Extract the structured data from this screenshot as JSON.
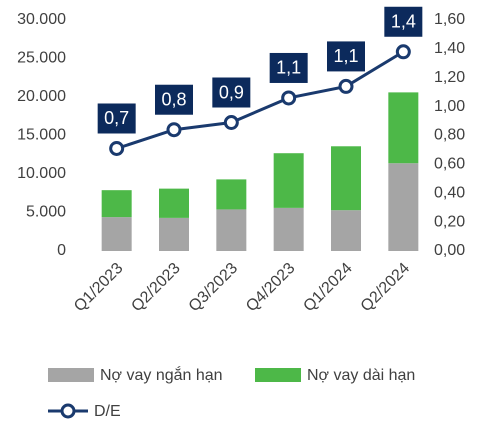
{
  "chart_data": {
    "type": "bar",
    "stacked": true,
    "categories": [
      "Q1/2023",
      "Q2/2023",
      "Q3/2023",
      "Q4/2023",
      "Q1/2024",
      "Q2/2024"
    ],
    "series": [
      {
        "name": "Nợ vay ngắn hạn",
        "color": "#a5a5a5",
        "values": [
          4400,
          4300,
          5400,
          5600,
          5300,
          11400
        ]
      },
      {
        "name": "Nợ vay dài hạn",
        "color": "#4db848",
        "values": [
          3500,
          3800,
          3900,
          7100,
          8300,
          9200
        ]
      },
      {
        "name": "D/E",
        "type": "line",
        "axis": "y2",
        "color": "#1a3a6e",
        "values": [
          0.71,
          0.84,
          0.89,
          1.06,
          1.14,
          1.38
        ],
        "value_labels": [
          "0,7",
          "0,8",
          "0,9",
          "1,1",
          "1,1",
          "1,4"
        ]
      }
    ],
    "ylim": [
      0,
      30000
    ],
    "yticks": [
      0,
      {
        "value": 5000,
        "label": "5.000"
      },
      {
        "value": 10000,
        "label": "10.000"
      },
      {
        "value": 15000,
        "label": "15.000"
      },
      {
        "value": 20000,
        "label": "20.000"
      },
      {
        "value": 25000,
        "label": "25.000"
      },
      {
        "value": 30000,
        "label": "30.000"
      }
    ],
    "y2lim": [
      0,
      1.6
    ],
    "y2ticks": [
      {
        "value": 0,
        "label": "0,00"
      },
      {
        "value": 0.2,
        "label": "0,20"
      },
      {
        "value": 0.4,
        "label": "0,40"
      },
      {
        "value": 0.6,
        "label": "0,60"
      },
      {
        "value": 0.8,
        "label": "0,80"
      },
      {
        "value": 1.0,
        "label": "1,00"
      },
      {
        "value": 1.2,
        "label": "1,20"
      },
      {
        "value": 1.4,
        "label": "1,40"
      },
      {
        "value": 1.6,
        "label": "1,60"
      }
    ],
    "legend": "bottom"
  }
}
